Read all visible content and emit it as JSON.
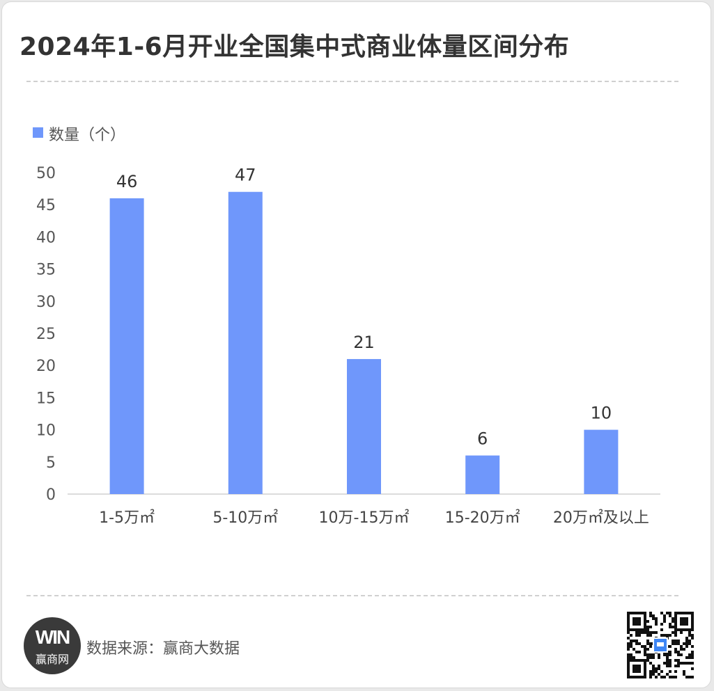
{
  "title": "2024年1-6月开业全国集中式商业体量区间分布",
  "legend": {
    "label": "数量（个）",
    "color": "#6f97fb"
  },
  "source_text": "数据来源：赢商大数据",
  "logo": {
    "mark": "WIN",
    "name": "赢商网"
  },
  "qr_icon": "qr-code-icon",
  "chart_data": {
    "type": "bar",
    "title": "2024年1-6月开业全国集中式商业体量区间分布",
    "categories": [
      "1-5万㎡",
      "5-10万㎡",
      "10万-15万㎡",
      "15-20万㎡",
      "20万㎡及以上"
    ],
    "series": [
      {
        "name": "数量（个）",
        "values": [
          46,
          47,
          21,
          6,
          10
        ]
      }
    ],
    "yticks": [
      0,
      5,
      10,
      15,
      20,
      25,
      30,
      35,
      40,
      45,
      50
    ],
    "data_labels": [
      "46",
      "47",
      "21",
      "6",
      "10"
    ],
    "ylim": [
      0,
      50
    ],
    "grid": false,
    "legend_position": "top-left",
    "bar_color": "#6f97fb",
    "xlabel": "",
    "ylabel": ""
  }
}
